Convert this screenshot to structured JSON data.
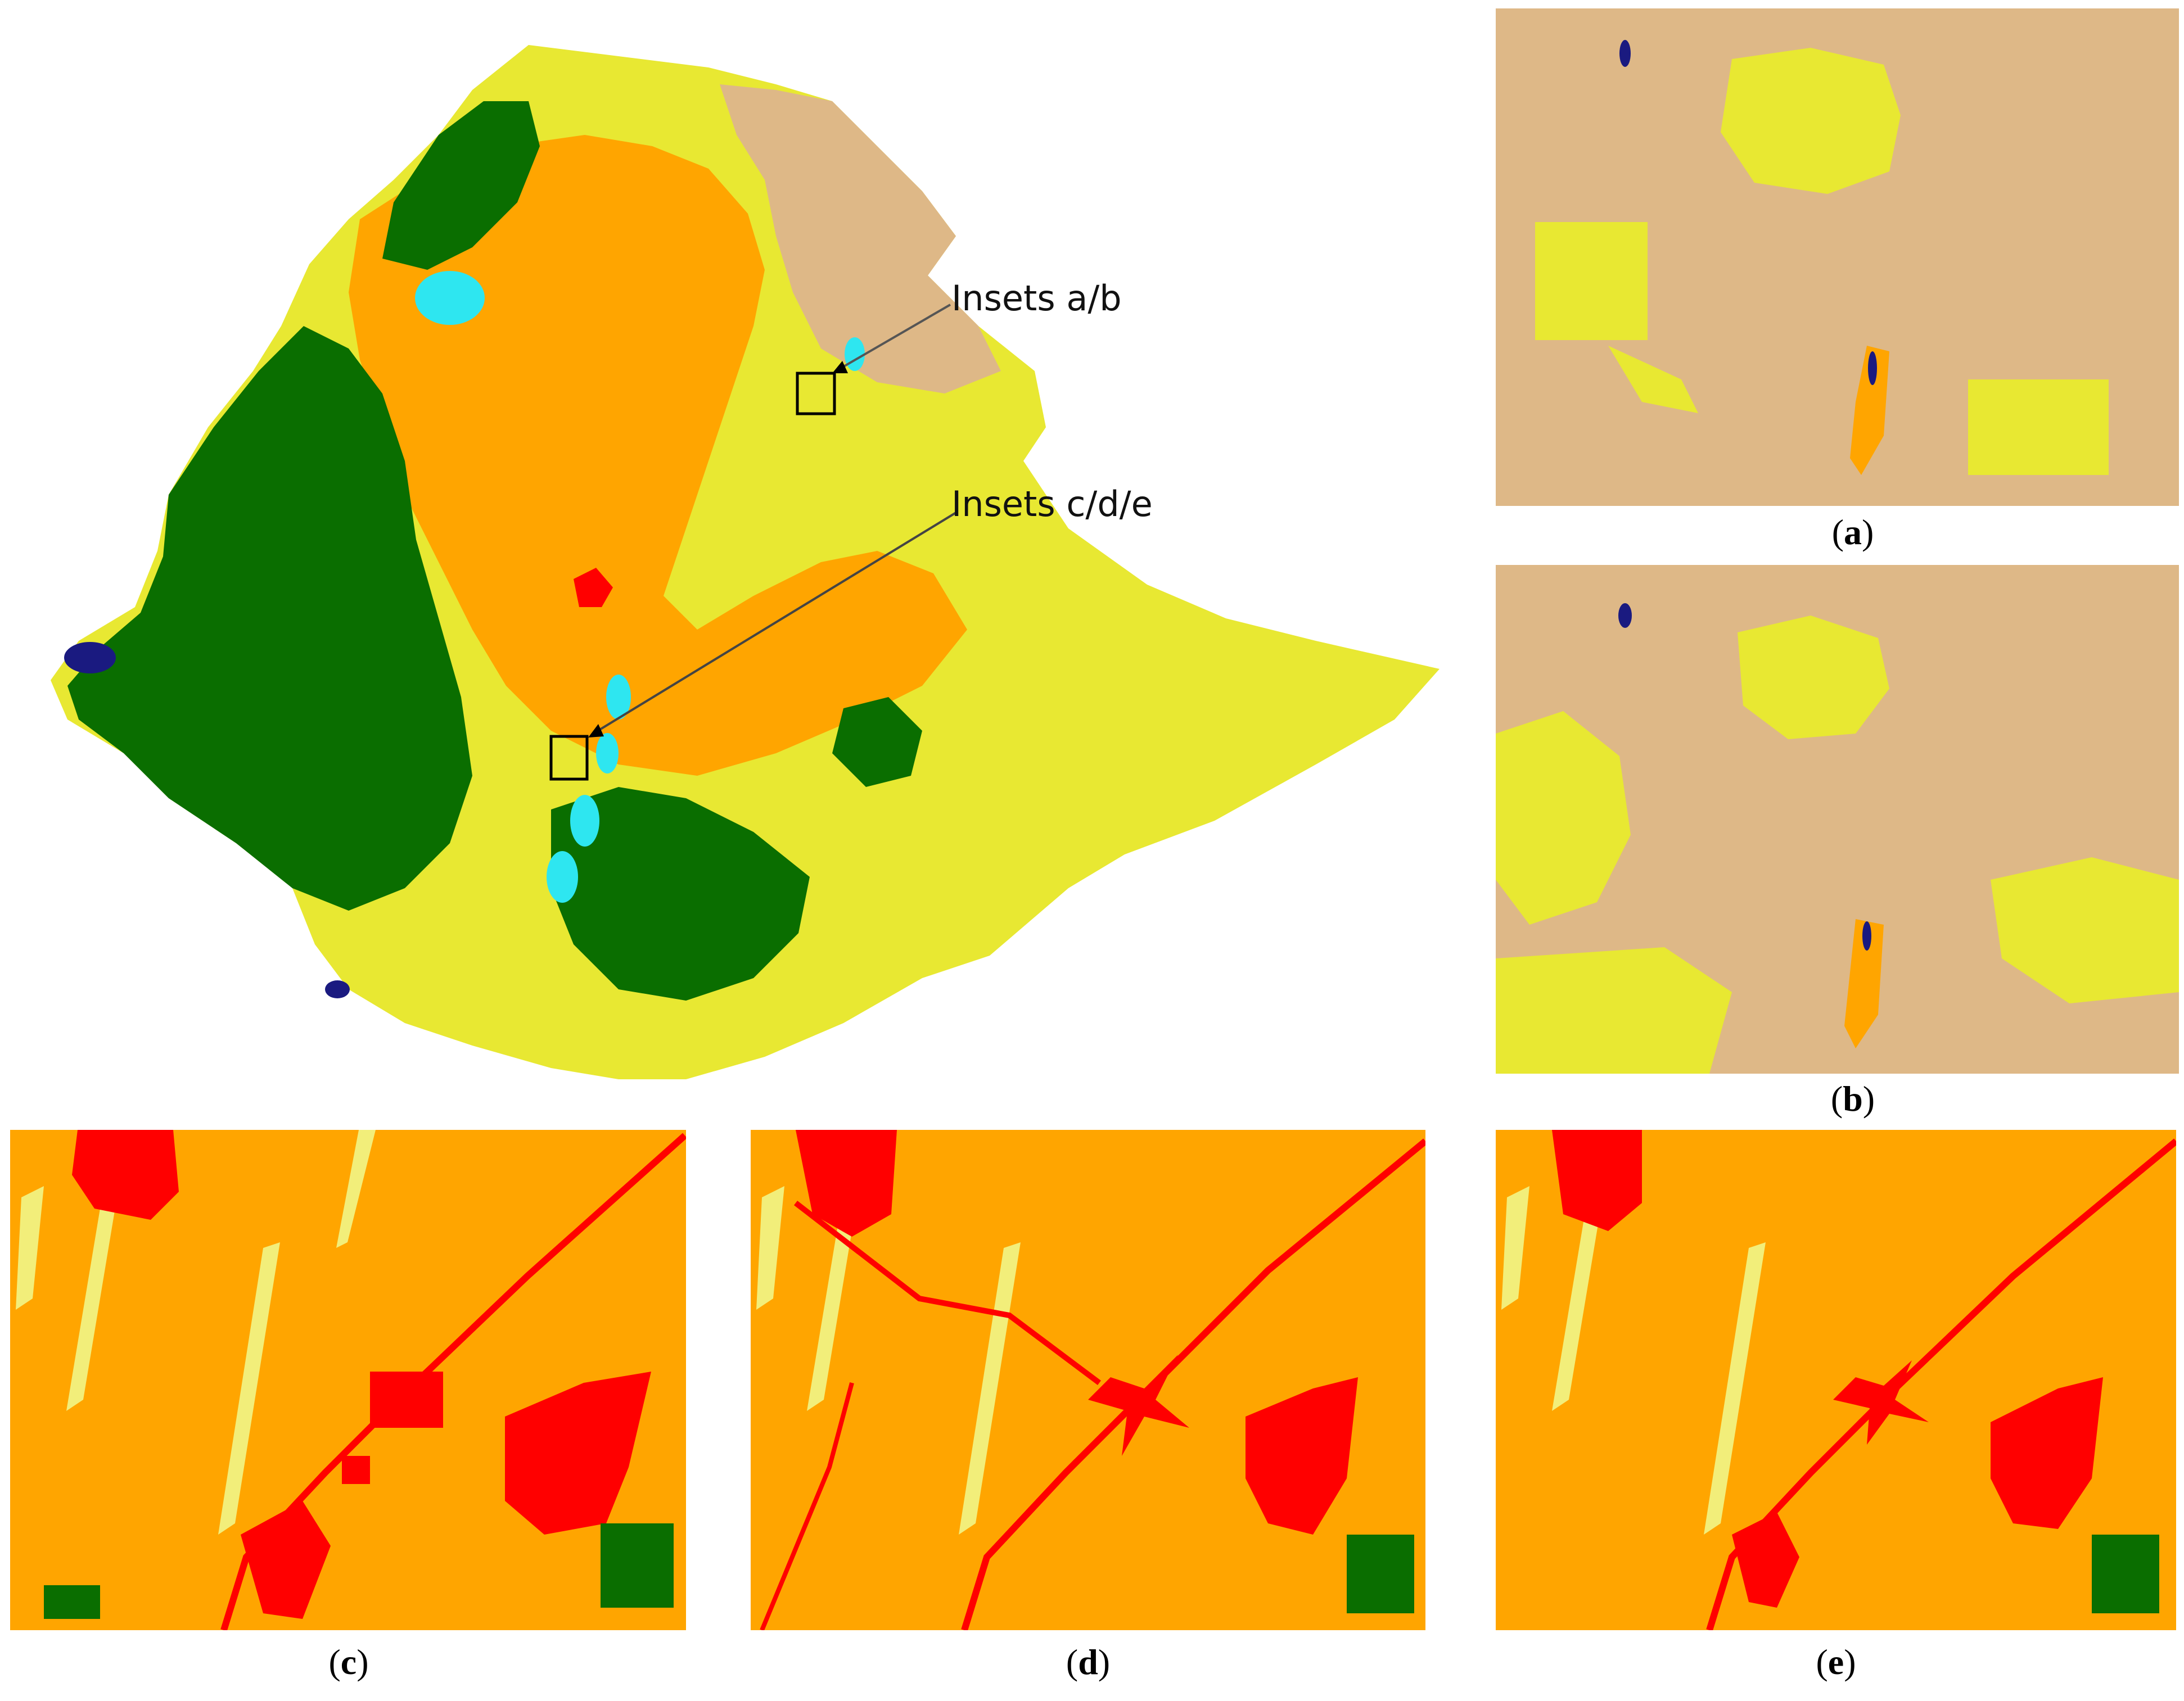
{
  "colors": {
    "cropland": "#ffa500",
    "urban": "#ff0000",
    "forest": "#0a6e00",
    "shrub_grass": "#e8e832",
    "bare": "#deb887",
    "water": "#2ee6f0",
    "wetland": "#1a1a80",
    "light_yellow": "#f2ee7a"
  },
  "annotations": {
    "insets_ab": "Insets a/b",
    "insets_cde": "Insets c/d/e"
  },
  "captions": {
    "a": "a",
    "b": "b",
    "c": "c",
    "d": "d",
    "e": "e"
  }
}
